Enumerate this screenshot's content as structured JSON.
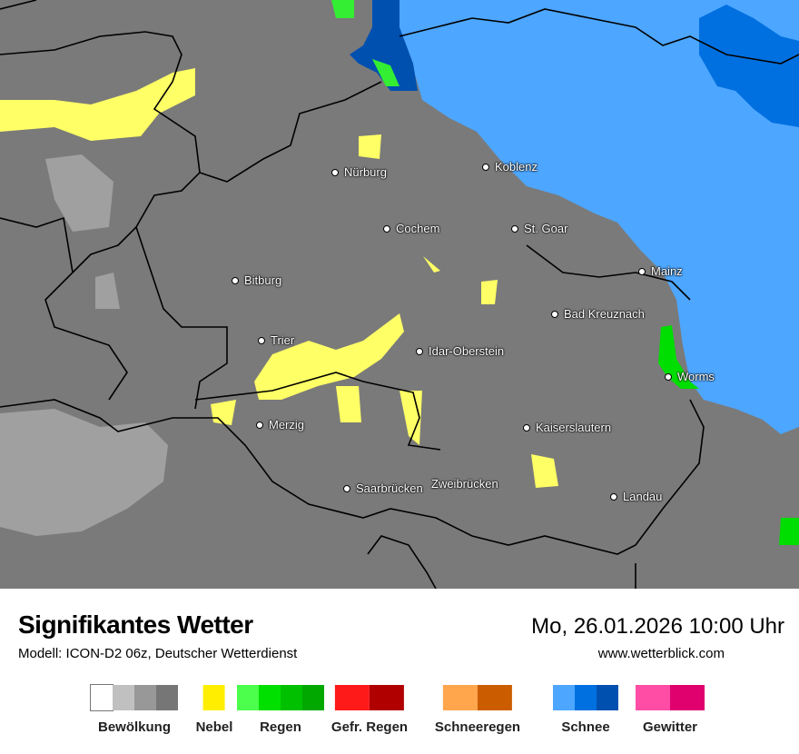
{
  "map": {
    "colors": {
      "ground": "#7a7a7a",
      "snow_light": "#4da6ff",
      "snow_mid": "#0070e0",
      "snow_dark": "#0050b0",
      "fog": "#ffff66",
      "rain": "#00dd00",
      "cloud_light": "#a0a0a0",
      "border": "#000000"
    },
    "cities": [
      {
        "name": "Nürburg"
      },
      {
        "name": "Koblenz"
      },
      {
        "name": "Cochem"
      },
      {
        "name": "St. Goar"
      },
      {
        "name": "Mainz"
      },
      {
        "name": "Bitburg"
      },
      {
        "name": "Bad Kreuznach"
      },
      {
        "name": "Trier"
      },
      {
        "name": "Idar-Oberstein"
      },
      {
        "name": "Worms"
      },
      {
        "name": "Merzig"
      },
      {
        "name": "Kaiserslautern"
      },
      {
        "name": "Saarbrücken"
      },
      {
        "name": "Zweibrücken"
      },
      {
        "name": "Landau"
      }
    ]
  },
  "footer": {
    "title": "Signifikantes Wetter",
    "model": "Modell: ICON-D2 06z, Deutscher Wetterdienst",
    "datetime": "Mo, 26.01.2026 10:00 Uhr",
    "website": "www.wetterblick.com"
  },
  "legend": [
    {
      "label": "Bewölkung",
      "colors": [
        "#ffffff",
        "#c0c0c0",
        "#989898",
        "#767676"
      ]
    },
    {
      "label": "Nebel",
      "colors": [
        "#ffee00"
      ]
    },
    {
      "label": "Regen",
      "colors": [
        "#4cff4c",
        "#00e000",
        "#00c000",
        "#00a800"
      ]
    },
    {
      "label": "Gefr. Regen",
      "colors": [
        "#ff1a1a",
        "#b00000"
      ]
    },
    {
      "label": "Schneeregen",
      "colors": [
        "#ffa64c",
        "#cc5c00"
      ]
    },
    {
      "label": "Schnee",
      "colors": [
        "#4da6ff",
        "#0070e0",
        "#0050b0"
      ]
    },
    {
      "label": "Gewitter",
      "colors": [
        "#ff4da6",
        "#e0006e"
      ]
    }
  ]
}
